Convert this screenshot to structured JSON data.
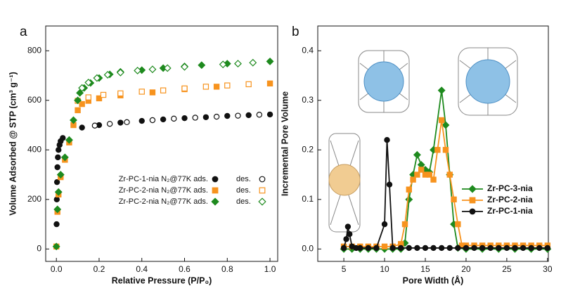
{
  "chart_data": [
    {
      "type": "scatter",
      "panel_label": "a",
      "x_label": "Relative Pressure (P/P₀)",
      "y_label": "Volume Adsorbed @ STP (cm³ g⁻¹)",
      "xlim": [
        -0.05,
        1.036
      ],
      "ylim": [
        -50,
        900
      ],
      "xticks": [
        {
          "value": 0,
          "label": "0.0"
        },
        {
          "value": 0.2,
          "label": "0.2"
        },
        {
          "value": 0.4,
          "label": "0.4"
        },
        {
          "value": 0.6,
          "label": "0.6"
        },
        {
          "value": 0.8,
          "label": "0.8"
        },
        {
          "value": 1,
          "label": "1.0"
        }
      ],
      "yticks": [
        0,
        200,
        400,
        600,
        800
      ],
      "series": [
        {
          "name": "Zr-PC-1-nia N₂@77K ads.",
          "color": "#111111",
          "marker": "circle",
          "filled": true,
          "x": [
            0,
            0.001,
            0.002,
            0.003,
            0.005,
            0.007,
            0.01,
            0.015,
            0.02,
            0.03,
            0.12,
            0.2,
            0.3,
            0.4,
            0.5,
            0.6,
            0.7,
            0.8,
            0.9,
            1.0
          ],
          "values": [
            10,
            100,
            200,
            270,
            330,
            370,
            400,
            420,
            435,
            448,
            490,
            500,
            510,
            517,
            523,
            528,
            532,
            537,
            540,
            543
          ]
        },
        {
          "name": "des.",
          "color": "#111111",
          "marker": "circle",
          "filled": false,
          "x": [
            0.95,
            0.85,
            0.75,
            0.65,
            0.55,
            0.45,
            0.33,
            0.25,
            0.18
          ],
          "values": [
            542,
            538,
            534,
            530,
            526,
            520,
            512,
            505,
            498
          ]
        },
        {
          "name": "Zr-PC-2-nia N₂@77K ads.",
          "color": "#f7931e",
          "marker": "square",
          "filled": true,
          "x": [
            0,
            0.005,
            0.01,
            0.02,
            0.04,
            0.06,
            0.08,
            0.1,
            0.12,
            0.15,
            0.2,
            0.3,
            0.45,
            0.6,
            0.75,
            1.0
          ],
          "values": [
            10,
            150,
            220,
            290,
            360,
            430,
            500,
            560,
            585,
            598,
            608,
            620,
            632,
            645,
            655,
            668
          ]
        },
        {
          "name": "des.",
          "color": "#f7931e",
          "marker": "square",
          "filled": false,
          "x": [
            0.9,
            0.8,
            0.7,
            0.6,
            0.5,
            0.4,
            0.3,
            0.22,
            0.15,
            0.1
          ],
          "values": [
            665,
            660,
            655,
            648,
            640,
            635,
            628,
            622,
            612,
            598
          ]
        },
        {
          "name": "Zr-PC-2-nia N₂@77K ads.",
          "color": "#1e8a1e",
          "marker": "diamond",
          "filled": true,
          "x": [
            0,
            0.005,
            0.01,
            0.02,
            0.04,
            0.06,
            0.08,
            0.1,
            0.11,
            0.13,
            0.16,
            0.2,
            0.25,
            0.3,
            0.4,
            0.5,
            0.6,
            0.68,
            0.8,
            1.0
          ],
          "values": [
            10,
            160,
            230,
            300,
            370,
            440,
            520,
            600,
            630,
            650,
            670,
            690,
            705,
            715,
            722,
            730,
            737,
            742,
            748,
            757
          ]
        },
        {
          "name": "des.",
          "color": "#1e8a1e",
          "marker": "diamond",
          "filled": false,
          "x": [
            0.92,
            0.85,
            0.78,
            0.6,
            0.52,
            0.45,
            0.38,
            0.3,
            0.24,
            0.19,
            0.15,
            0.12
          ],
          "values": [
            752,
            748,
            745,
            735,
            730,
            725,
            720,
            712,
            703,
            690,
            672,
            650
          ]
        }
      ]
    },
    {
      "type": "line",
      "panel_label": "b",
      "x_label": "Pore Width (Å)",
      "y_label": "Incremental Pore Volume",
      "xlim": [
        1.8,
        30.1
      ],
      "ylim": [
        -0.025,
        0.45
      ],
      "xticks": [
        5,
        10,
        15,
        20,
        25,
        30
      ],
      "yticks": [
        {
          "value": 0,
          "label": "0.0"
        },
        {
          "value": 0.1,
          "label": "0.1"
        },
        {
          "value": 0.2,
          "label": "0.2"
        },
        {
          "value": 0.3,
          "label": "0.3"
        },
        {
          "value": 0.4,
          "label": "0.4"
        }
      ],
      "series": [
        {
          "name": "Zr-PC-3-nia",
          "color": "#1e8a1e",
          "marker": "diamond",
          "filled": true,
          "x": [
            5,
            6,
            7,
            8,
            9,
            10,
            11,
            12,
            12.5,
            13,
            13.5,
            14,
            14.5,
            15,
            15.5,
            16,
            17,
            17.5,
            18,
            18.5,
            19,
            20,
            22,
            24,
            26,
            28,
            30
          ],
          "values": [
            0,
            0,
            0,
            0,
            0,
            0,
            0,
            0,
            0.012,
            0.1,
            0.15,
            0.19,
            0.17,
            0.16,
            0.155,
            0.2,
            0.32,
            0.25,
            0.15,
            0.05,
            0.002,
            0,
            0,
            0,
            0,
            0,
            0
          ]
        },
        {
          "name": "Zr-PC-2-nia",
          "color": "#f7931e",
          "marker": "square",
          "filled": true,
          "x": [
            5,
            6,
            7,
            8,
            9,
            10,
            11,
            12,
            12.5,
            13,
            13.5,
            14,
            14.5,
            15,
            15.5,
            16,
            16.5,
            17,
            17.5,
            18,
            18.5,
            19,
            19.5,
            20,
            21,
            22,
            23,
            24,
            25,
            26,
            27,
            28,
            29,
            30
          ],
          "values": [
            0.005,
            0.005,
            0.005,
            0.005,
            0.005,
            0.005,
            0.005,
            0.01,
            0.05,
            0.12,
            0.14,
            0.15,
            0.16,
            0.15,
            0.15,
            0.14,
            0.2,
            0.26,
            0.2,
            0.15,
            0.1,
            0.05,
            0.007,
            0.007,
            0.007,
            0.007,
            0.007,
            0.007,
            0.007,
            0.007,
            0.007,
            0.007,
            0.007,
            0.007
          ]
        },
        {
          "name": "Zr-PC-1-nia",
          "color": "#111111",
          "marker": "circle",
          "filled": true,
          "x": [
            5,
            5.3,
            5.5,
            5.7,
            6,
            6.5,
            7,
            8,
            9,
            10,
            10.3,
            10.6,
            11,
            12,
            13,
            14,
            15,
            16,
            17,
            18,
            19,
            20,
            21,
            22,
            23,
            24,
            25,
            26,
            27,
            28,
            29,
            30
          ],
          "values": [
            0.002,
            0.02,
            0.045,
            0.03,
            0.005,
            0.002,
            0.002,
            0.002,
            0.002,
            0.05,
            0.22,
            0.13,
            0.002,
            0.002,
            0.002,
            0.002,
            0.002,
            0.002,
            0.002,
            0.002,
            0.002,
            0.002,
            0.002,
            0.002,
            0.002,
            0.002,
            0.002,
            0.002,
            0.002,
            0.002,
            0.002,
            0.002
          ]
        }
      ]
    }
  ]
}
